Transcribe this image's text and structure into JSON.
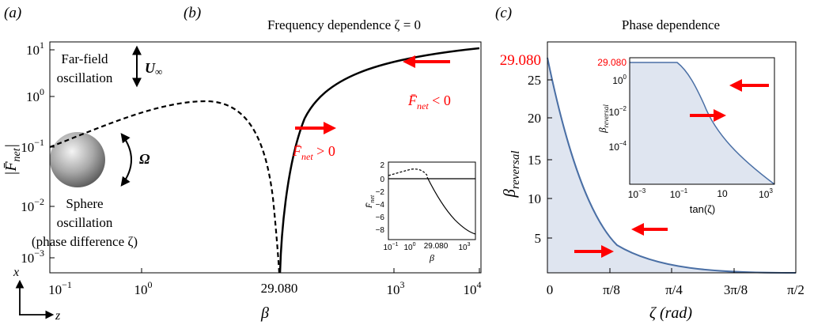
{
  "panel_a": {
    "label": "(a)",
    "farfield_line1": "Far-field",
    "farfield_line2": "oscillation",
    "u_label": "U",
    "u_sub": "∞",
    "omega_label": "Ω",
    "sphere_line1": "Sphere",
    "sphere_line2": "oscillation",
    "sphere_line3": "(phase difference ζ)",
    "axis_x": "x",
    "axis_z": "z"
  },
  "panel_b": {
    "label": "(b)",
    "title": "Frequency dependence ζ = 0",
    "xlabel": "β",
    "ylabel": "|F̄net|",
    "xticks": [
      "10−1",
      "100",
      "29.080",
      "103",
      "104"
    ],
    "yticks": [
      "101",
      "100",
      "10−1",
      "10−2",
      "10−3"
    ],
    "annotation_pos": "F̄net > 0",
    "annotation_neg": "F̄net < 0",
    "inset": {
      "ylabel": "F̄net",
      "xlabel": "β",
      "yticks": [
        "2",
        "0",
        "−2",
        "−4",
        "−6",
        "−8"
      ],
      "xticks": [
        "10−1",
        "100",
        "29.080",
        "103"
      ]
    }
  },
  "panel_c": {
    "label": "(c)",
    "title": "Phase dependence",
    "xlabel": "ζ (rad)",
    "ylabel": "βreversal",
    "highlight_tick": "29.080",
    "yticks": [
      "25",
      "20",
      "15",
      "10",
      "5"
    ],
    "xticks": [
      "0",
      "π/8",
      "π/4",
      "3π/8",
      "π/2"
    ],
    "inset": {
      "highlight_tick": "29.080",
      "ylabel": "βreversal",
      "xlabel": "tan(ζ)",
      "yticks": [
        "100",
        "10−2",
        "10−4"
      ],
      "xticks": [
        "10−3",
        "10−1",
        "10",
        "103"
      ]
    }
  },
  "colors": {
    "arrow_red": "#ff0000",
    "curve_blue": "#4a6fa5",
    "fill_blue": "#dfe5f0"
  }
}
